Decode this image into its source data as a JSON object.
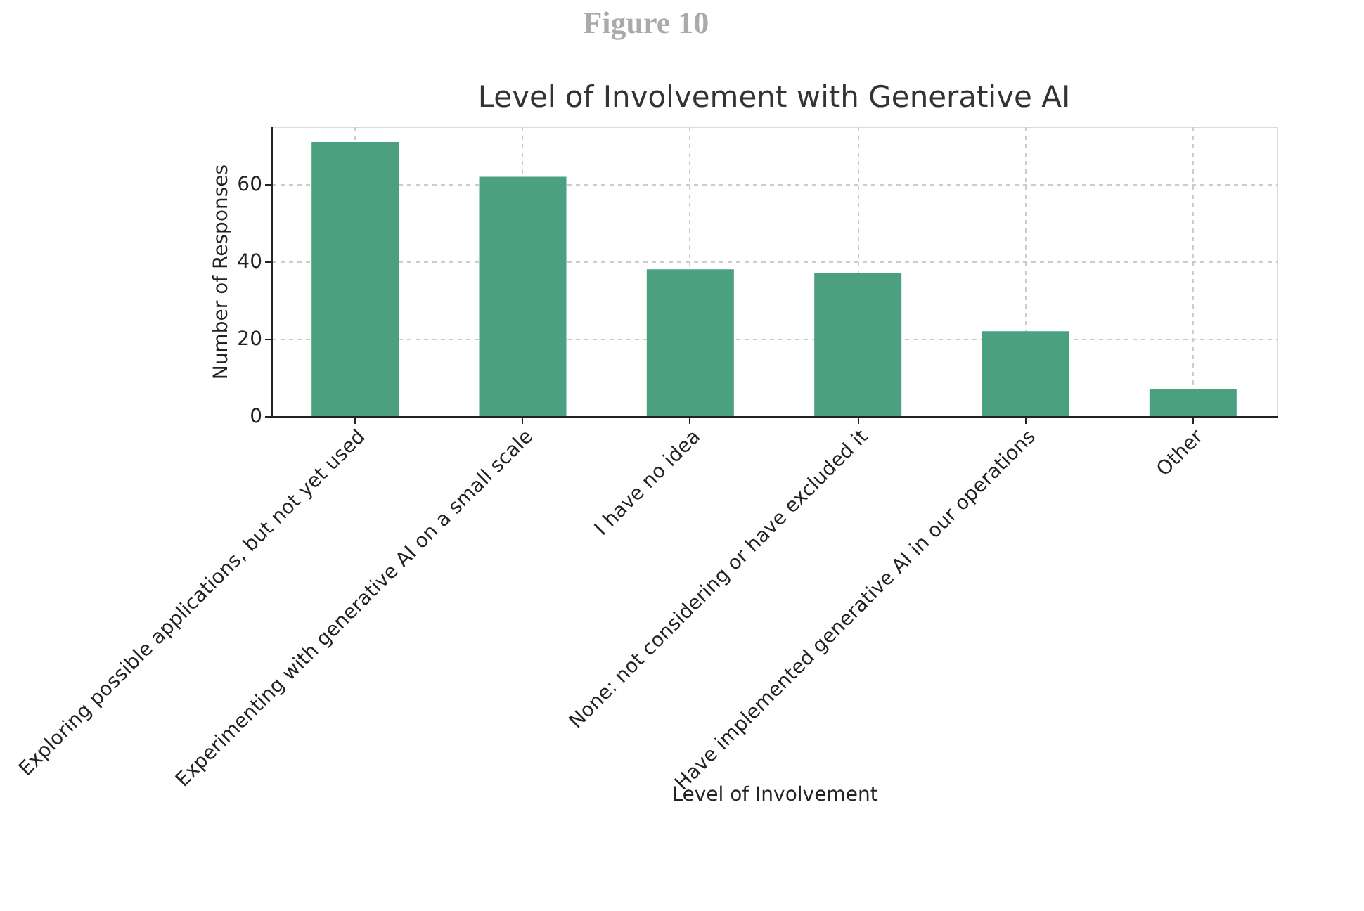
{
  "chart_data": {
    "type": "bar",
    "title": "Level of Involvement with Generative AI",
    "annotations": [
      "Figure 10"
    ],
    "xlabel": "Level of Involvement",
    "ylabel": "Number of Responses",
    "categories": [
      "Exploring possible applications, but not yet used",
      "Experimenting with generative AI on a small scale",
      "I have no idea",
      "None: not considering or have excluded it",
      "Have implemented generative AI in our operations",
      "Other"
    ],
    "values": [
      71,
      62,
      38,
      37,
      22,
      7
    ],
    "color": "#4ba07f",
    "ylim": [
      0,
      75
    ],
    "yticks": [
      0,
      20,
      40,
      60
    ],
    "grid": true
  }
}
